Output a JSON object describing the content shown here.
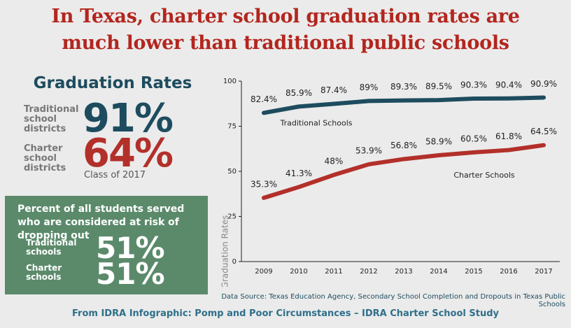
{
  "header": {
    "title_lines": [
      "In Texas, charter school graduation rates are",
      "much lower than traditional public schools"
    ]
  },
  "graduation_panel": {
    "title": "Graduation Rates",
    "rows": [
      {
        "label": "Traditional school districts",
        "value": "91%"
      },
      {
        "label": "Charter school districts",
        "value": "64%"
      }
    ],
    "note": "Class of 2017"
  },
  "risk_panel": {
    "title": "Percent of all students served who are considered at risk of dropping out",
    "rows": [
      {
        "label": "Traditional schools",
        "value": "51%"
      },
      {
        "label": "Charter schools",
        "value": "51%"
      }
    ]
  },
  "chart_data": {
    "type": "line",
    "y_label": "Graduation Rates",
    "categories": [
      "2009",
      "2010",
      "2011",
      "2012",
      "2013",
      "2014",
      "2015",
      "2016",
      "2017"
    ],
    "ylim": [
      0,
      100
    ],
    "yticks": [
      0,
      25,
      50,
      75,
      100
    ],
    "grid": false,
    "series": [
      {
        "name": "Traditional Schools",
        "color": "#1d4c5e",
        "values": [
          82.4,
          85.9,
          87.4,
          89,
          89.3,
          89.5,
          90.3,
          90.4,
          90.9
        ],
        "value_labels": [
          "82.4%",
          "85.9%",
          "87.4%",
          "89%",
          "89.3%",
          "89.5%",
          "90.3%",
          "90.4%",
          "90.9%"
        ]
      },
      {
        "name": "Charter Schools",
        "color": "#b3302a",
        "values": [
          35.3,
          41.3,
          48,
          53.9,
          56.8,
          58.9,
          60.5,
          61.8,
          64.5
        ],
        "value_labels": [
          "35.3%",
          "41.3%",
          "48%",
          "53.9%",
          "56.8%",
          "58.9%",
          "60.5%",
          "61.8%",
          "64.5%"
        ]
      }
    ],
    "source": "Data Source: Texas Education Agency, Secondary School Completion and Dropouts in Texas Public Schools"
  },
  "footer": {
    "text": "From IDRA Infographic: Pomp and Poor Circumstances – IDRA Charter School Study"
  }
}
